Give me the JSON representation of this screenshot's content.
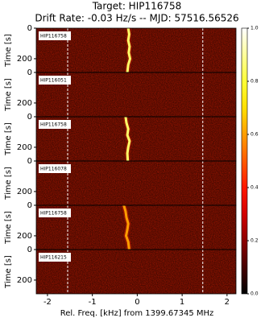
{
  "chart_data": {
    "type": "waterfall",
    "title": "Target: HIP116758",
    "subtitle": "Drift Rate: -0.03 Hz/s -- MJD: 57516.56526",
    "xlabel": "Rel. Freq. [kHz] from 1399.67345 MHz",
    "ylabel": "Time [s]",
    "xlim": [
      -2.25,
      2.2
    ],
    "xticks": [
      -2,
      -1,
      0,
      1,
      2
    ],
    "ylim": [
      0,
      290
    ],
    "yticks": [
      0,
      200
    ],
    "y_inverted": true,
    "vlines": [
      -1.55,
      1.46
    ],
    "colormap": "hot",
    "clim": [
      0,
      1
    ],
    "cticks": [
      {
        "value": 0,
        "label": "0.0"
      },
      0.2,
      0.4,
      0.6,
      0.8,
      {
        "value": 1,
        "label": "1.0"
      }
    ],
    "panels": [
      {
        "name": "HIP116758",
        "time": [
          0,
          40,
          80,
          120,
          160,
          200,
          240,
          290
        ],
        "freq": [
          -0.2,
          -0.18,
          -0.2,
          -0.17,
          -0.19,
          -0.16,
          -0.2,
          -0.22
        ],
        "intensity": 0.85
      },
      {
        "name": "HIP116051"
      },
      {
        "name": "HIP116758",
        "time": [
          0,
          40,
          80,
          120,
          160,
          200,
          240,
          290
        ],
        "freq": [
          -0.26,
          -0.24,
          -0.2,
          -0.22,
          -0.17,
          -0.2,
          -0.22,
          -0.21
        ],
        "intensity": 0.85
      },
      {
        "name": "HIP116078"
      },
      {
        "name": "HIP116758",
        "time": [
          0,
          40,
          80,
          120,
          160,
          200,
          240,
          290
        ],
        "freq": [
          -0.3,
          -0.26,
          -0.24,
          -0.2,
          -0.22,
          -0.25,
          -0.2,
          -0.18
        ],
        "intensity": 0.6
      },
      {
        "name": "HIP116215"
      }
    ]
  }
}
